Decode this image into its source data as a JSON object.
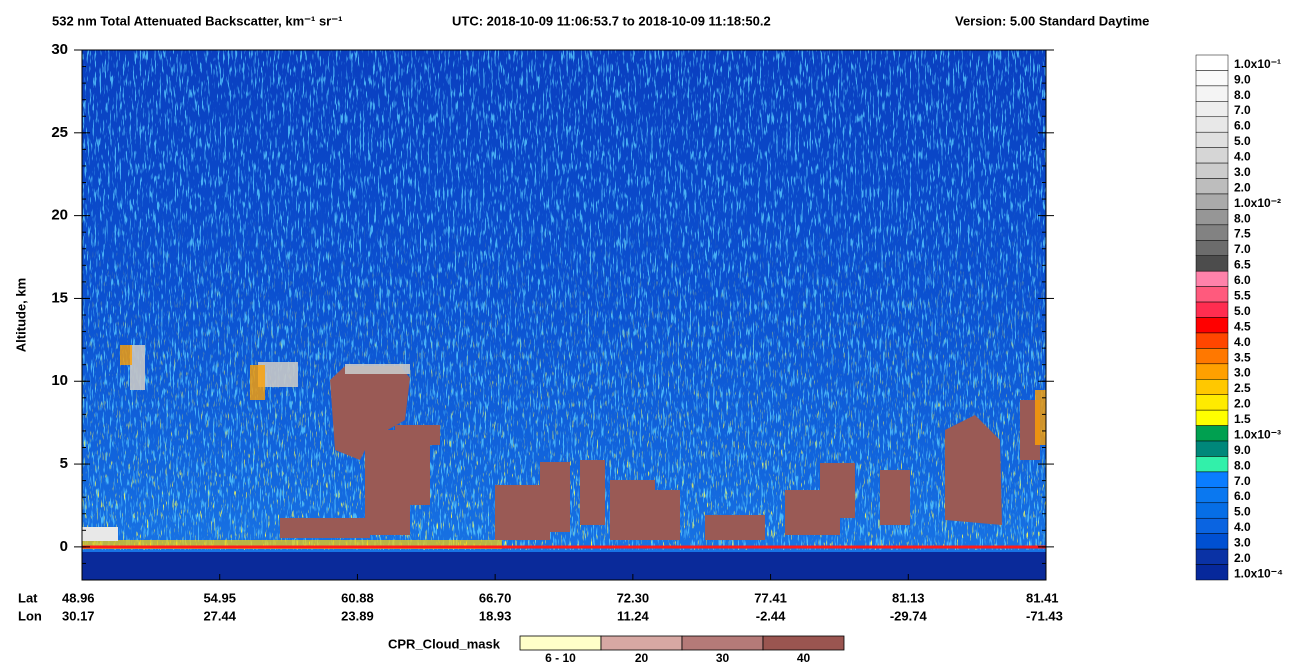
{
  "chart_data": {
    "type": "heatmap",
    "title": "532 nm Total Attenuated Backscatter, km⁻¹ sr⁻¹",
    "time_range": "UTC:  2018-10-09 11:06:53.7  to  2018-10-09 11:18:50.2",
    "version": "Version: 5.00  Standard  Daytime",
    "ylabel": "Altitude, km",
    "ylim": [
      -2,
      30
    ],
    "yticks": [
      0,
      5,
      10,
      15,
      20,
      25,
      30
    ],
    "x_rows": [
      {
        "name": "Lat",
        "labels": [
          "48.96",
          "54.95",
          "60.88",
          "66.70",
          "72.30",
          "77.41",
          "81.13",
          "81.41"
        ]
      },
      {
        "name": "Lon",
        "labels": [
          "30.17",
          "27.44",
          "23.89",
          "18.93",
          "11.24",
          "-2.44",
          "-29.74",
          "-71.43"
        ]
      }
    ],
    "colorbar": [
      {
        "label": "1.0x10⁻¹",
        "color": "#ffffff"
      },
      {
        "label": "9.0",
        "color": "#fafafa"
      },
      {
        "label": "8.0",
        "color": "#f4f4f4"
      },
      {
        "label": "7.0",
        "color": "#eeeeee"
      },
      {
        "label": "6.0",
        "color": "#e8e8e8"
      },
      {
        "label": "5.0",
        "color": "#e0e0e0"
      },
      {
        "label": "4.0",
        "color": "#d6d6d6"
      },
      {
        "label": "3.0",
        "color": "#cccccc"
      },
      {
        "label": "2.0",
        "color": "#bdbdbd"
      },
      {
        "label": "1.0x10⁻²",
        "color": "#aaaaaa"
      },
      {
        "label": "8.0",
        "color": "#969696"
      },
      {
        "label": "7.5",
        "color": "#828282"
      },
      {
        "label": "7.0",
        "color": "#6c6c6c"
      },
      {
        "label": "6.5",
        "color": "#4c4c4c"
      },
      {
        "label": "6.0",
        "color": "#ff82aa"
      },
      {
        "label": "5.5",
        "color": "#ff5a7d"
      },
      {
        "label": "5.0",
        "color": "#ff2d50"
      },
      {
        "label": "4.5",
        "color": "#ff0000"
      },
      {
        "label": "4.0",
        "color": "#ff4600"
      },
      {
        "label": "3.5",
        "color": "#ff7800"
      },
      {
        "label": "3.0",
        "color": "#ffa000"
      },
      {
        "label": "2.5",
        "color": "#ffc800"
      },
      {
        "label": "2.0",
        "color": "#ffeb00"
      },
      {
        "label": "1.5",
        "color": "#ffff00"
      },
      {
        "label": "1.0x10⁻³",
        "color": "#00a050"
      },
      {
        "label": "9.0",
        "color": "#00877a"
      },
      {
        "label": "8.0",
        "color": "#32f0aa"
      },
      {
        "label": "7.0",
        "color": "#0a7dff"
      },
      {
        "label": "6.0",
        "color": "#0a78f0"
      },
      {
        "label": "5.0",
        "color": "#066ee6"
      },
      {
        "label": "4.0",
        "color": "#0a64e1"
      },
      {
        "label": "3.0",
        "color": "#0050d2"
      },
      {
        "label": "2.0",
        "color": "#0a32a5"
      },
      {
        "label": "1.0x10⁻⁴",
        "color": "#06289b"
      }
    ],
    "cpr_legend": {
      "title": "CPR_Cloud_mask",
      "entries": [
        {
          "label": "6 - 10",
          "color": "#ffffc8"
        },
        {
          "label": "20",
          "color": "#d7a8a3"
        },
        {
          "label": "30",
          "color": "#b57a78"
        },
        {
          "label": "40",
          "color": "#9a5550"
        }
      ]
    }
  }
}
